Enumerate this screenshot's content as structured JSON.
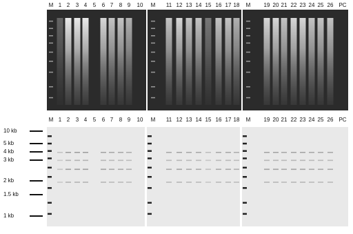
{
  "gels": [
    {
      "lanes": [
        "M",
        "1",
        "2",
        "3",
        "4",
        "5",
        "6",
        "7",
        "8",
        "9",
        "10"
      ]
    },
    {
      "lanes": [
        "M",
        "11",
        "12",
        "13",
        "14",
        "15",
        "16",
        "17",
        "18"
      ]
    },
    {
      "lanes": [
        "M",
        "19",
        "20",
        "21",
        "22",
        "23",
        "24",
        "25",
        "26",
        "PC"
      ]
    }
  ],
  "size_markers": [
    "10 kb",
    "5 kb",
    "4 kb",
    "3 kb",
    "2 kb",
    "1.5 kb",
    "1 kb"
  ]
}
